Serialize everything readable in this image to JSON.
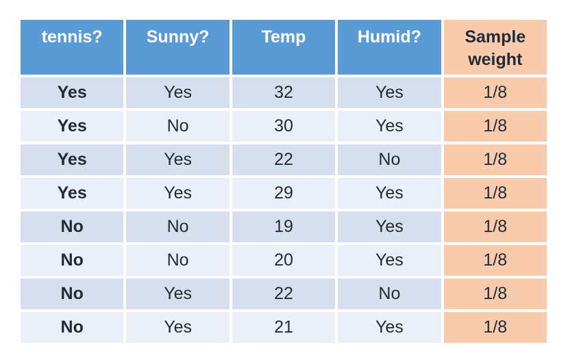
{
  "colors": {
    "header_blue": "#5B9BD5",
    "header_peach": "#F7CBAC",
    "row_odd": "#D7DEEE",
    "row_even": "#EBEFF7",
    "weight_cell": "#F7CBAC",
    "text_dark": "#232B39",
    "header_text": "#FFFFFF",
    "page_bg": "#FFFFFF"
  },
  "table": {
    "headers": [
      "tennis?",
      "Sunny?",
      "Temp",
      "Humid?",
      "Sample weight"
    ],
    "rows": [
      [
        "Yes",
        "Yes",
        "32",
        "Yes",
        "1/8"
      ],
      [
        "Yes",
        "No",
        "30",
        "Yes",
        "1/8"
      ],
      [
        "Yes",
        "Yes",
        "22",
        "No",
        "1/8"
      ],
      [
        "Yes",
        "Yes",
        "29",
        "Yes",
        "1/8"
      ],
      [
        "No",
        "No",
        "19",
        "Yes",
        "1/8"
      ],
      [
        "No",
        "No",
        "20",
        "Yes",
        "1/8"
      ],
      [
        "No",
        "Yes",
        "22",
        "No",
        "1/8"
      ],
      [
        "No",
        "Yes",
        "21",
        "Yes",
        "1/8"
      ]
    ]
  },
  "chart_data": {
    "type": "table",
    "title": "",
    "columns": [
      "tennis?",
      "Sunny?",
      "Temp",
      "Humid?",
      "Sample weight"
    ],
    "rows": [
      {
        "tennis": "Yes",
        "sunny": "Yes",
        "temp": 32,
        "humid": "Yes",
        "sample_weight": "1/8"
      },
      {
        "tennis": "Yes",
        "sunny": "No",
        "temp": 30,
        "humid": "Yes",
        "sample_weight": "1/8"
      },
      {
        "tennis": "Yes",
        "sunny": "Yes",
        "temp": 22,
        "humid": "No",
        "sample_weight": "1/8"
      },
      {
        "tennis": "Yes",
        "sunny": "Yes",
        "temp": 29,
        "humid": "Yes",
        "sample_weight": "1/8"
      },
      {
        "tennis": "No",
        "sunny": "No",
        "temp": 19,
        "humid": "Yes",
        "sample_weight": "1/8"
      },
      {
        "tennis": "No",
        "sunny": "No",
        "temp": 20,
        "humid": "Yes",
        "sample_weight": "1/8"
      },
      {
        "tennis": "No",
        "sunny": "Yes",
        "temp": 22,
        "humid": "No",
        "sample_weight": "1/8"
      },
      {
        "tennis": "No",
        "sunny": "Yes",
        "temp": 21,
        "humid": "Yes",
        "sample_weight": "1/8"
      }
    ],
    "layout_hints": {
      "banded_rows": true,
      "first_column_bold": true,
      "last_column_highlighted": true
    }
  }
}
